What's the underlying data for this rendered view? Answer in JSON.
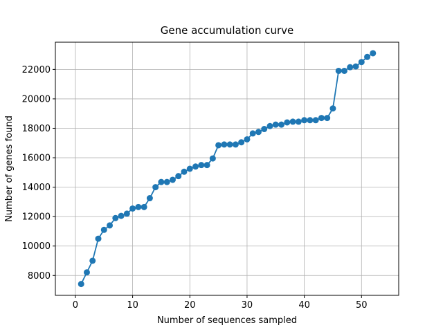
{
  "chart_data": {
    "type": "line",
    "title": "Gene accumulation curve",
    "xlabel": "Number of sequences sampled",
    "ylabel": "Number of genes found",
    "xlim": [
      -3.5,
      56.5
    ],
    "ylim": [
      6650,
      23850
    ],
    "xticks": [
      0,
      10,
      20,
      30,
      40,
      50
    ],
    "yticks": [
      8000,
      10000,
      12000,
      14000,
      16000,
      18000,
      20000,
      22000
    ],
    "grid": true,
    "series": [
      {
        "name": "",
        "color": "#1f77b4",
        "marker": "circle",
        "x": [
          1,
          2,
          3,
          4,
          5,
          6,
          7,
          8,
          9,
          10,
          11,
          12,
          13,
          14,
          15,
          16,
          17,
          18,
          19,
          20,
          21,
          22,
          23,
          24,
          25,
          26,
          27,
          28,
          29,
          30,
          31,
          32,
          33,
          34,
          35,
          36,
          37,
          38,
          39,
          40,
          41,
          42,
          43,
          44,
          45,
          46,
          47,
          48,
          49,
          50,
          51,
          52
        ],
        "y": [
          7420,
          8210,
          9000,
          10500,
          11100,
          11400,
          11900,
          12050,
          12200,
          12550,
          12650,
          12650,
          13250,
          14000,
          14350,
          14350,
          14500,
          14750,
          15050,
          15250,
          15400,
          15500,
          15500,
          15950,
          16850,
          16900,
          16900,
          16900,
          17050,
          17250,
          17650,
          17750,
          17950,
          18150,
          18250,
          18250,
          18400,
          18450,
          18450,
          18550,
          18550,
          18550,
          18700,
          18700,
          19350,
          21900,
          21900,
          22150,
          22200,
          22500,
          22850,
          23100
        ]
      }
    ]
  }
}
